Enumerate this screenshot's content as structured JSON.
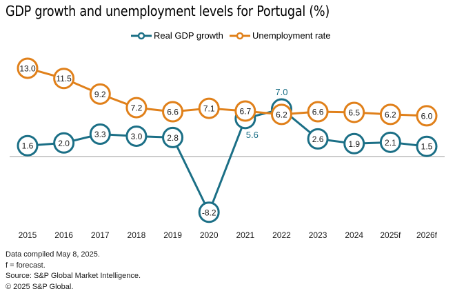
{
  "chart_data": {
    "type": "line",
    "title": "GDP growth and unemployment levels for Portugal (%)",
    "xlabel": "",
    "ylabel": "",
    "categories": [
      "2015",
      "2016",
      "2017",
      "2018",
      "2019",
      "2020",
      "2021",
      "2022",
      "2023",
      "2024",
      "2025f",
      "2026f"
    ],
    "series": [
      {
        "name": "Real GDP growth",
        "color": "#1b6f86",
        "values": [
          1.6,
          2.0,
          3.3,
          3.0,
          2.8,
          -8.2,
          5.6,
          7.0,
          2.6,
          1.9,
          2.1,
          1.5
        ],
        "labels": [
          "1.6",
          "2.0",
          "3.3",
          "3.0",
          "2.8",
          "-8.2",
          "5.6",
          "7.0",
          "2.6",
          "1.9",
          "2.1",
          "1.5"
        ],
        "label_position": [
          "inside",
          "inside",
          "inside",
          "inside",
          "inside",
          "inside",
          "below",
          "above",
          "inside",
          "inside",
          "inside",
          "inside"
        ]
      },
      {
        "name": "Unemployment rate",
        "color": "#e0801a",
        "values": [
          13.0,
          11.5,
          9.2,
          7.2,
          6.6,
          7.1,
          6.7,
          6.2,
          6.6,
          6.5,
          6.2,
          6.0
        ],
        "labels": [
          "13.0",
          "11.5",
          "9.2",
          "7.2",
          "6.6",
          "7.1",
          "6.7",
          "6.2",
          "6.6",
          "6.5",
          "6.2",
          "6.0"
        ],
        "label_position": [
          "inside",
          "inside",
          "inside",
          "inside",
          "inside",
          "inside",
          "inside",
          "inside",
          "inside",
          "inside",
          "inside",
          "inside"
        ]
      }
    ],
    "ylim": [
      -9,
      13.5
    ],
    "zero_line": true,
    "grid": false,
    "legend": "top-center"
  },
  "notes": [
    "Data compiled May 8, 2025.",
    "f = forecast.",
    "Source: S&P Global Market Intelligence.",
    "© 2025 S&P Global."
  ]
}
